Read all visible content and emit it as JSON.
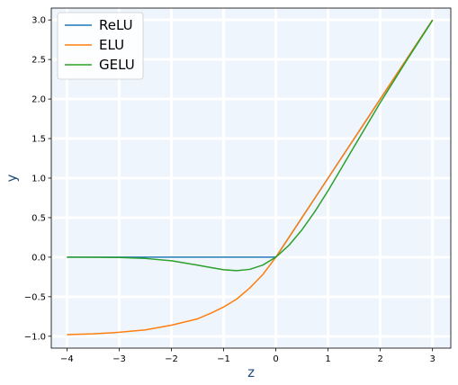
{
  "chart_data": {
    "type": "line",
    "title": "",
    "xlabel": "z",
    "ylabel": "y",
    "xlim": [
      -4.3,
      3.35
    ],
    "ylim": [
      -1.15,
      3.15
    ],
    "xticks": [
      -4,
      -3,
      -2,
      -1,
      0,
      1,
      2,
      3
    ],
    "xtick_labels": [
      "−4",
      "−3",
      "−2",
      "−1",
      "0",
      "1",
      "2",
      "3"
    ],
    "yticks": [
      -1.0,
      -0.5,
      0.0,
      0.5,
      1.0,
      1.5,
      2.0,
      2.5,
      3.0
    ],
    "ytick_labels": [
      "−1.0",
      "−0.5",
      "0.0",
      "0.5",
      "1.0",
      "1.5",
      "2.0",
      "2.5",
      "3.0"
    ],
    "grid": true,
    "legend_position": "top-left",
    "plot_background": "#eef5fd",
    "x": [
      -4.0,
      -3.5,
      -3.0,
      -2.5,
      -2.0,
      -1.5,
      -1.25,
      -1.0,
      -0.75,
      -0.5,
      -0.25,
      0.0,
      0.25,
      0.5,
      0.75,
      1.0,
      1.25,
      1.5,
      2.0,
      2.5,
      3.0
    ],
    "series": [
      {
        "name": "ReLU",
        "color": "#1f77b4",
        "values": [
          0,
          0,
          0,
          0,
          0,
          0,
          0,
          0,
          0,
          0,
          0,
          0,
          0.25,
          0.5,
          0.75,
          1.0,
          1.25,
          1.5,
          2.0,
          2.5,
          3.0
        ]
      },
      {
        "name": "ELU",
        "color": "#ff7f0e",
        "values": [
          -0.98,
          -0.97,
          -0.95,
          -0.92,
          -0.86,
          -0.78,
          -0.71,
          -0.63,
          -0.53,
          -0.39,
          -0.22,
          0.0,
          0.25,
          0.5,
          0.75,
          1.0,
          1.25,
          1.5,
          2.0,
          2.5,
          3.0
        ]
      },
      {
        "name": "GELU",
        "color": "#2ca02c",
        "values": [
          0.0,
          -0.001,
          -0.004,
          -0.016,
          -0.045,
          -0.1,
          -0.13,
          -0.159,
          -0.17,
          -0.154,
          -0.1,
          0.0,
          0.15,
          0.346,
          0.58,
          0.841,
          1.12,
          1.4,
          1.955,
          2.484,
          2.996
        ]
      }
    ]
  }
}
